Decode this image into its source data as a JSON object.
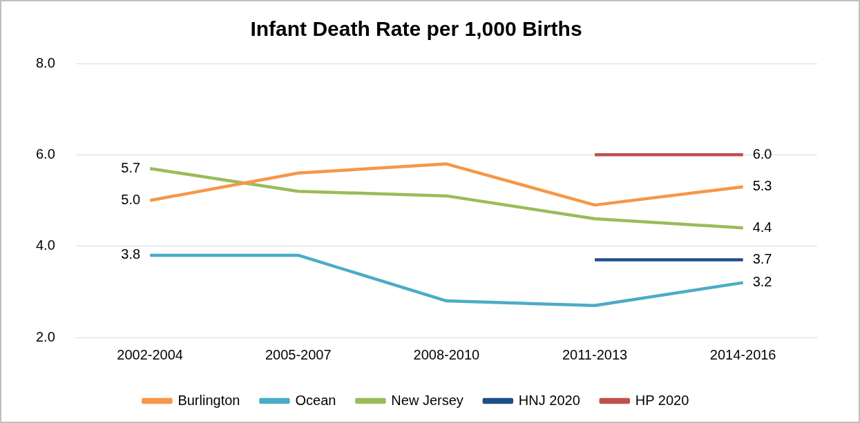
{
  "chart_data": {
    "type": "line",
    "title": "Infant Death Rate per 1,000 Births",
    "categories": [
      "2002-2004",
      "2005-2007",
      "2008-2010",
      "2011-2013",
      "2014-2016"
    ],
    "series": [
      {
        "name": "Burlington",
        "color": "#f79646",
        "values": [
          5.0,
          5.6,
          5.8,
          4.9,
          5.3
        ],
        "value_labels": [
          "5.0",
          null,
          null,
          null,
          "5.3"
        ]
      },
      {
        "name": "Ocean",
        "color": "#4bacc6",
        "values": [
          3.8,
          3.8,
          2.8,
          2.7,
          3.2
        ],
        "value_labels": [
          "3.8",
          null,
          null,
          null,
          "3.2"
        ]
      },
      {
        "name": "New Jersey",
        "color": "#9bbb59",
        "values": [
          5.7,
          5.2,
          5.1,
          4.6,
          4.4
        ],
        "value_labels": [
          "5.7",
          null,
          null,
          null,
          "4.4"
        ]
      },
      {
        "name": "HNJ 2020",
        "color": "#1f4e8c",
        "values": [
          null,
          null,
          null,
          3.7,
          3.7
        ],
        "value_labels": [
          null,
          null,
          null,
          null,
          "3.7"
        ]
      },
      {
        "name": "HP 2020",
        "color": "#c0504d",
        "values": [
          null,
          null,
          null,
          6.0,
          6.0
        ],
        "value_labels": [
          null,
          null,
          null,
          null,
          "6.0"
        ]
      }
    ],
    "ylim": [
      2,
      8
    ],
    "yticks": [
      {
        "value": 2,
        "label": "2.0"
      },
      {
        "value": 4,
        "label": "4.0"
      },
      {
        "value": 6,
        "label": "6.0"
      },
      {
        "value": 8,
        "label": "8.0"
      }
    ],
    "grid": "y",
    "legend": "bottom",
    "marker": "none",
    "line_style": "solid"
  }
}
